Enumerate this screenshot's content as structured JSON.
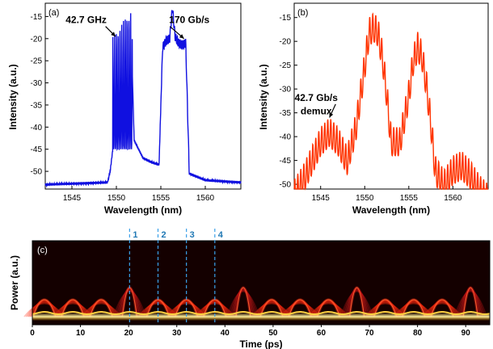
{
  "chart_data": [
    {
      "id": "a",
      "type": "line",
      "panel_label": "(a)",
      "xlabel": "Wavelength (nm)",
      "ylabel": "Intensity (a.u.)",
      "xlim": [
        1542,
        1564
      ],
      "ylim": [
        -54,
        -12
      ],
      "xticks": [
        1545,
        1550,
        1555,
        1560
      ],
      "yticks": [
        -50,
        -45,
        -40,
        -35,
        -30,
        -25,
        -20,
        -15
      ],
      "color": "#1010e0",
      "series": [
        {
          "x": [
            1542,
            1549.0,
            1549.3,
            1549.6,
            1550.0,
            1550.3,
            1550.6,
            1551.0,
            1551.3,
            1551.6,
            1552.0,
            1553.0,
            1554.0,
            1554.8,
            1555.2,
            1555.6,
            1556.0,
            1556.3,
            1556.6,
            1557.0,
            1557.4,
            1557.8,
            1558.2,
            1560,
            1564
          ],
          "y": [
            -53,
            -52.5,
            -50,
            -45,
            -24,
            -22,
            -20,
            -18,
            -16,
            -14,
            -43,
            -47,
            -48,
            -48.5,
            -22,
            -20.5,
            -20,
            -13,
            -19.5,
            -21,
            -21.5,
            -21,
            -50.5,
            -52,
            -52.5
          ]
        }
      ],
      "annotations": [
        {
          "text": "42.7 GHz",
          "x": 1546.6,
          "y": -16.5,
          "arrow_to": [
            1549.9,
            -19.5
          ]
        },
        {
          "text": "170 Gb/s",
          "x": 1558.2,
          "y": -16.5,
          "arrow_to": [
            1557.6,
            -20
          ]
        }
      ]
    },
    {
      "id": "b",
      "type": "line",
      "panel_label": "(b)",
      "xlabel": "Wavelength (nm)",
      "ylabel": "Intensity (a.u.)",
      "xlim": [
        1542,
        1564
      ],
      "ylim": [
        -51,
        -12
      ],
      "xticks": [
        1545,
        1550,
        1555,
        1560
      ],
      "yticks": [
        -50,
        -45,
        -40,
        -35,
        -30,
        -25,
        -20,
        -15
      ],
      "color": "#ff3300",
      "series": [
        {
          "x": [
            1542,
            1543,
            1544,
            1545,
            1546,
            1547,
            1548,
            1549,
            1550,
            1550.5,
            1551,
            1551.5,
            1552,
            1552.5,
            1553,
            1554,
            1555,
            1555.5,
            1556,
            1556.5,
            1557,
            1557.5,
            1558,
            1559,
            1560,
            1561,
            1562,
            1563,
            1564
          ],
          "y": [
            -49,
            -46,
            -42,
            -38,
            -36,
            -38,
            -42,
            -35,
            -22,
            -15,
            -14,
            -15,
            -20,
            -28,
            -38,
            -38,
            -28,
            -21,
            -18,
            -20,
            -26,
            -34,
            -44,
            -47,
            -44,
            -43,
            -45,
            -48,
            -50
          ]
        }
      ],
      "annotations": [
        {
          "text": "42.7 Gb/s",
          "x": 1544.5,
          "y": -32.5,
          "arrow_to": [
            1546,
            -36
          ]
        },
        {
          "text": "demux",
          "x": 1544.5,
          "y": -35.3
        }
      ]
    },
    {
      "id": "c",
      "type": "heatmap",
      "panel_label": "(c)",
      "xlabel": "Time (ps)",
      "ylabel": "Power (a.u.)",
      "xlim": [
        0,
        95
      ],
      "xticks": [
        0,
        10,
        20,
        30,
        40,
        50,
        60,
        70,
        80,
        90
      ],
      "peaks_ps": [
        2.5,
        8.4,
        14.3,
        20.2,
        26.1,
        32.0,
        37.9,
        43.8,
        49.7,
        55.6,
        61.5,
        67.4,
        73.3,
        79.2,
        85.1,
        91.0
      ],
      "tall_peaks_ps": [
        20.2,
        43.8,
        67.4,
        91.0
      ],
      "markers": [
        {
          "label": "1",
          "x": 20.2
        },
        {
          "label": "2",
          "x": 26.1
        },
        {
          "label": "3",
          "x": 32.0
        },
        {
          "label": "4",
          "x": 37.9
        }
      ]
    }
  ]
}
